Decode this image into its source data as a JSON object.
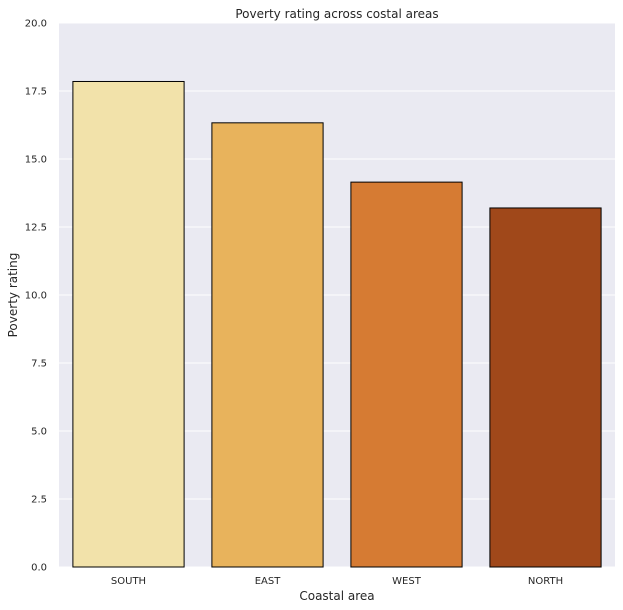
{
  "chart_data": {
    "type": "bar",
    "title": "Poverty rating across costal areas",
    "xlabel": "Coastal area",
    "ylabel": "Poverty rating",
    "categories": [
      "SOUTH",
      "EAST",
      "WEST",
      "NORTH"
    ],
    "values": [
      17.85,
      16.33,
      14.15,
      13.2
    ],
    "ylim": [
      0,
      20
    ],
    "yticks": [
      "0.0",
      "2.5",
      "5.0",
      "7.5",
      "10.0",
      "12.5",
      "15.0",
      "17.5",
      "20.0"
    ],
    "grid": true,
    "bar_colors": [
      "#f2e2aa",
      "#e8b35c",
      "#d67b33",
      "#a0481a"
    ],
    "bar_edge_color": "#000000",
    "background_color": "#eaeaf2",
    "grid_color": "#ffffff"
  }
}
